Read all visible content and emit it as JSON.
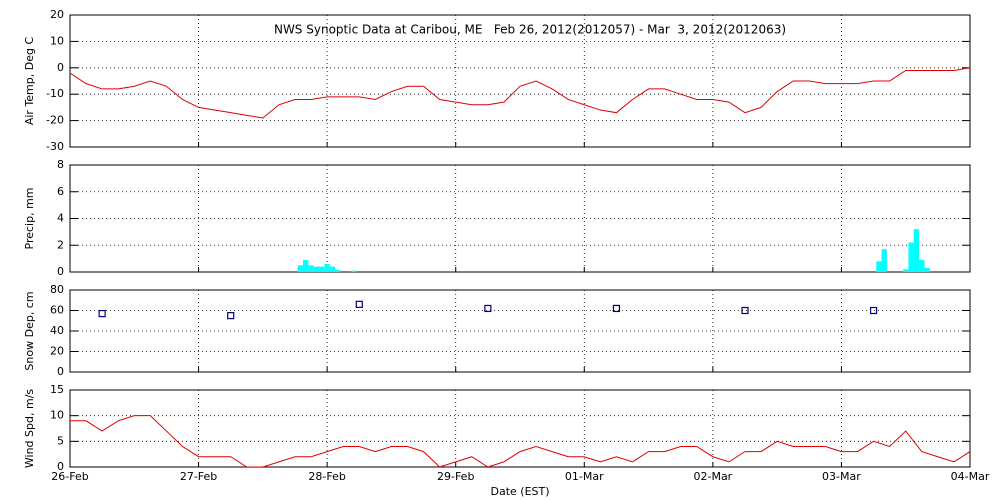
{
  "chart_data": [
    {
      "type": "line",
      "title": "NWS Synoptic Data at Caribou, ME   Feb 26, 2012(2012057) - Mar  3, 2012(2012063)",
      "y_label": "Air Temp, Deg C",
      "color": "#e00000",
      "xlim": [
        0,
        7
      ],
      "ylim": [
        -30,
        20
      ],
      "yticks": [
        -30,
        -20,
        -10,
        0,
        10,
        20
      ],
      "grid": true,
      "x": [
        0,
        0.125,
        0.25,
        0.375,
        0.5,
        0.625,
        0.75,
        0.875,
        1,
        1.125,
        1.25,
        1.375,
        1.5,
        1.625,
        1.75,
        1.875,
        2,
        2.125,
        2.25,
        2.375,
        2.5,
        2.625,
        2.75,
        2.875,
        3,
        3.125,
        3.25,
        3.375,
        3.5,
        3.625,
        3.75,
        3.875,
        4,
        4.125,
        4.25,
        4.375,
        4.5,
        4.625,
        4.75,
        4.875,
        5,
        5.125,
        5.25,
        5.375,
        5.5,
        5.625,
        5.75,
        5.875,
        6,
        6.125,
        6.25,
        6.375,
        6.5,
        6.625,
        6.75,
        6.875,
        7
      ],
      "values": [
        -2,
        -6,
        -8,
        -8,
        -7,
        -5,
        -7,
        -12,
        -15,
        -16,
        -17,
        -18,
        -19,
        -14,
        -12,
        -12,
        -11,
        -11,
        -11,
        -12,
        -9,
        -7,
        -7,
        -12,
        -13,
        -14,
        -14,
        -13,
        -7,
        -5,
        -8,
        -12,
        -14,
        -16,
        -17,
        -12,
        -8,
        -8,
        -10,
        -12,
        -12,
        -13,
        -17,
        -15,
        -9,
        -5,
        -5,
        -6,
        -6,
        -6,
        -5,
        -5,
        -1,
        -1,
        -1,
        -1,
        0
      ]
    },
    {
      "type": "bar",
      "y_label": "Precip, mm",
      "color": "#00ffff",
      "xlim": [
        0,
        7
      ],
      "ylim": [
        0,
        8
      ],
      "yticks": [
        0,
        2,
        4,
        6,
        8
      ],
      "grid": true,
      "x": [
        1.792,
        1.833,
        1.875,
        1.917,
        1.958,
        2.0,
        2.042,
        2.083,
        2.208,
        6.292,
        6.333,
        6.5,
        6.542,
        6.583,
        6.625,
        6.667
      ],
      "values": [
        0.5,
        0.9,
        0.5,
        0.4,
        0.4,
        0.6,
        0.4,
        0.15,
        0.1,
        0.8,
        1.7,
        0.2,
        2.2,
        3.2,
        0.9,
        0.3
      ]
    },
    {
      "type": "scatter",
      "y_label": "Snow Dep, cm",
      "color": "#000080",
      "xlim": [
        0,
        7
      ],
      "ylim": [
        0,
        80
      ],
      "yticks": [
        0,
        20,
        40,
        60,
        80
      ],
      "grid": true,
      "x": [
        0.25,
        1.25,
        2.25,
        3.25,
        4.25,
        5.25,
        6.25
      ],
      "values": [
        57,
        55,
        66,
        62,
        62,
        60,
        60
      ]
    },
    {
      "type": "line",
      "y_label": "Wind Spd, m/s",
      "x_label": "Date (EST)",
      "color": "#e00000",
      "xlim": [
        0,
        7
      ],
      "ylim": [
        0,
        15
      ],
      "yticks": [
        0,
        5,
        10,
        15
      ],
      "grid": true,
      "xticks": [
        {
          "value": 0,
          "label": "26-Feb"
        },
        {
          "value": 1,
          "label": "27-Feb"
        },
        {
          "value": 2,
          "label": "28-Feb"
        },
        {
          "value": 3,
          "label": "29-Feb"
        },
        {
          "value": 4,
          "label": "01-Mar"
        },
        {
          "value": 5,
          "label": "02-Mar"
        },
        {
          "value": 6,
          "label": "03-Mar"
        },
        {
          "value": 7,
          "label": "04-Mar"
        }
      ],
      "x": [
        0,
        0.125,
        0.25,
        0.375,
        0.5,
        0.625,
        0.75,
        0.875,
        1,
        1.125,
        1.25,
        1.375,
        1.5,
        1.625,
        1.75,
        1.875,
        2,
        2.125,
        2.25,
        2.375,
        2.5,
        2.625,
        2.75,
        2.875,
        3,
        3.125,
        3.25,
        3.375,
        3.5,
        3.625,
        3.75,
        3.875,
        4,
        4.125,
        4.25,
        4.375,
        4.5,
        4.625,
        4.75,
        4.875,
        5,
        5.125,
        5.25,
        5.375,
        5.5,
        5.625,
        5.75,
        5.875,
        6,
        6.125,
        6.25,
        6.375,
        6.5,
        6.625,
        6.75,
        6.875,
        7
      ],
      "values": [
        9,
        9,
        7,
        9,
        10,
        10,
        7,
        4,
        2,
        2,
        2,
        0,
        0,
        1,
        2,
        2,
        3,
        4,
        4,
        3,
        4,
        4,
        3,
        0,
        1,
        2,
        0,
        1,
        3,
        4,
        3,
        2,
        2,
        1,
        2,
        1,
        3,
        3,
        4,
        4,
        2,
        1,
        3,
        3,
        5,
        4,
        4,
        4,
        3,
        3,
        5,
        4,
        7,
        3,
        2,
        1,
        3
      ]
    }
  ]
}
